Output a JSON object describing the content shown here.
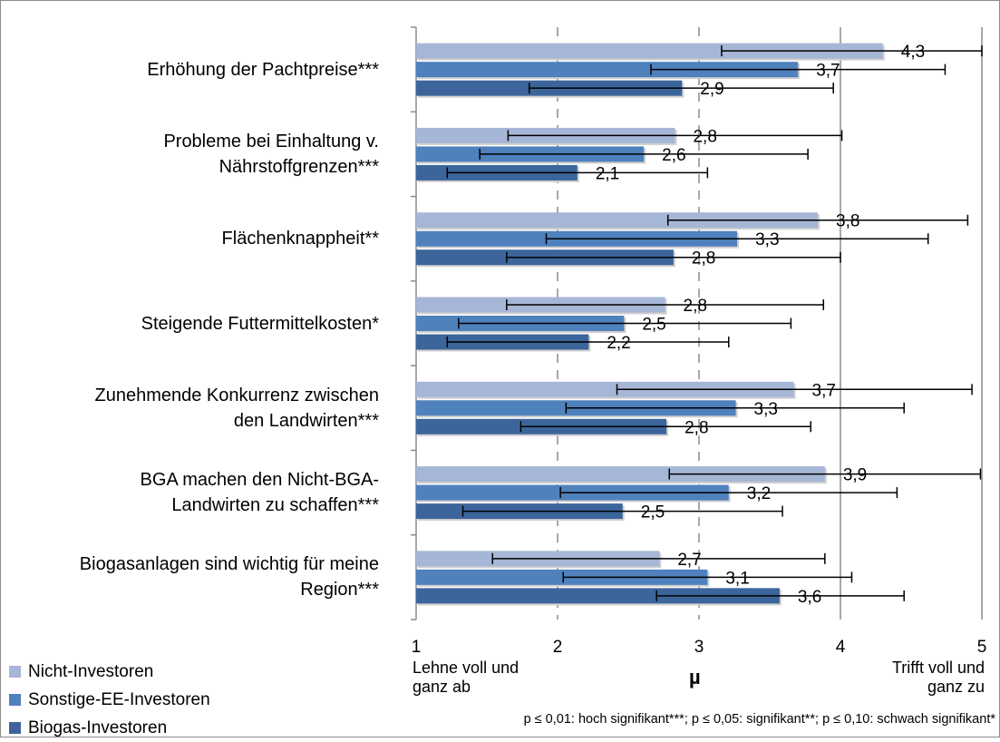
{
  "chart_data": {
    "type": "bar",
    "orientation": "horizontal",
    "categories": [
      [
        "Erhöhung der Pachtpreise***"
      ],
      [
        "Probleme bei Einhaltung v.",
        "Nährstoffgrenzen***"
      ],
      [
        "Flächenknappheit**"
      ],
      [
        "Steigende Futtermittelkosten*"
      ],
      [
        "Zunehmende Konkurrenz zwischen",
        "den Landwirten***"
      ],
      [
        "BGA machen den Nicht-BGA-",
        "Landwirten zu schaffen***"
      ],
      [
        "Biogasanlagen sind wichtig für meine",
        "Region***"
      ]
    ],
    "series": [
      {
        "name": "Nicht-Investoren",
        "color": "#a6b6d6",
        "values": [
          4.3,
          2.8,
          3.8,
          2.8,
          3.7,
          3.9,
          2.7
        ],
        "labels": [
          "4,3",
          "2,8",
          "3,8",
          "2,8",
          "3,7",
          "3,9",
          "2,7"
        ],
        "actual_values": [
          4.3,
          2.83,
          3.84,
          2.76,
          3.67,
          3.89,
          2.72
        ],
        "err_low": [
          3.16,
          1.65,
          2.78,
          1.64,
          2.42,
          2.79,
          1.54
        ],
        "err_high": [
          5.0,
          4.01,
          4.9,
          3.88,
          4.93,
          4.99,
          3.89
        ]
      },
      {
        "name": "Sonstige-EE-Investoren",
        "color": "#4f81bd",
        "values": [
          3.7,
          2.6,
          3.3,
          2.5,
          3.3,
          3.2,
          3.1
        ],
        "labels": [
          "3,7",
          "2,6",
          "3,3",
          "2,5",
          "3,3",
          "3,2",
          "3,1"
        ],
        "actual_values": [
          3.7,
          2.61,
          3.27,
          2.47,
          3.26,
          3.21,
          3.06
        ],
        "err_low": [
          2.66,
          1.45,
          1.92,
          1.3,
          2.06,
          2.02,
          2.04
        ],
        "err_high": [
          4.74,
          3.77,
          4.62,
          3.65,
          4.45,
          4.4,
          4.08
        ]
      },
      {
        "name": "Biogas-Investoren",
        "color": "#3c659b",
        "values": [
          2.9,
          2.1,
          2.8,
          2.2,
          2.8,
          2.5,
          3.6
        ],
        "labels": [
          "2,9",
          "2,1",
          "2,8",
          "2,2",
          "2,8",
          "2,5",
          "3,6"
        ],
        "actual_values": [
          2.88,
          2.14,
          2.82,
          2.22,
          2.77,
          2.46,
          3.57
        ],
        "err_low": [
          1.8,
          1.22,
          1.64,
          1.22,
          1.74,
          1.33,
          2.7
        ],
        "err_high": [
          3.95,
          3.06,
          4.0,
          3.21,
          3.79,
          3.59,
          4.45
        ]
      }
    ],
    "xlim": [
      1,
      5
    ],
    "xticks": [
      "1",
      "2",
      "3",
      "4",
      "5"
    ],
    "xlabel": "µ",
    "x_left_label": "Lehne voll und ganz ab",
    "x_right_label": "Trifft voll und ganz zu",
    "legend_position": "bottom-left",
    "grid": true,
    "footnote": "p ≤ 0,01: hoch signifikant***; p ≤ 0,05: signifikant**; p ≤ 0,10: schwach signifikant*"
  }
}
